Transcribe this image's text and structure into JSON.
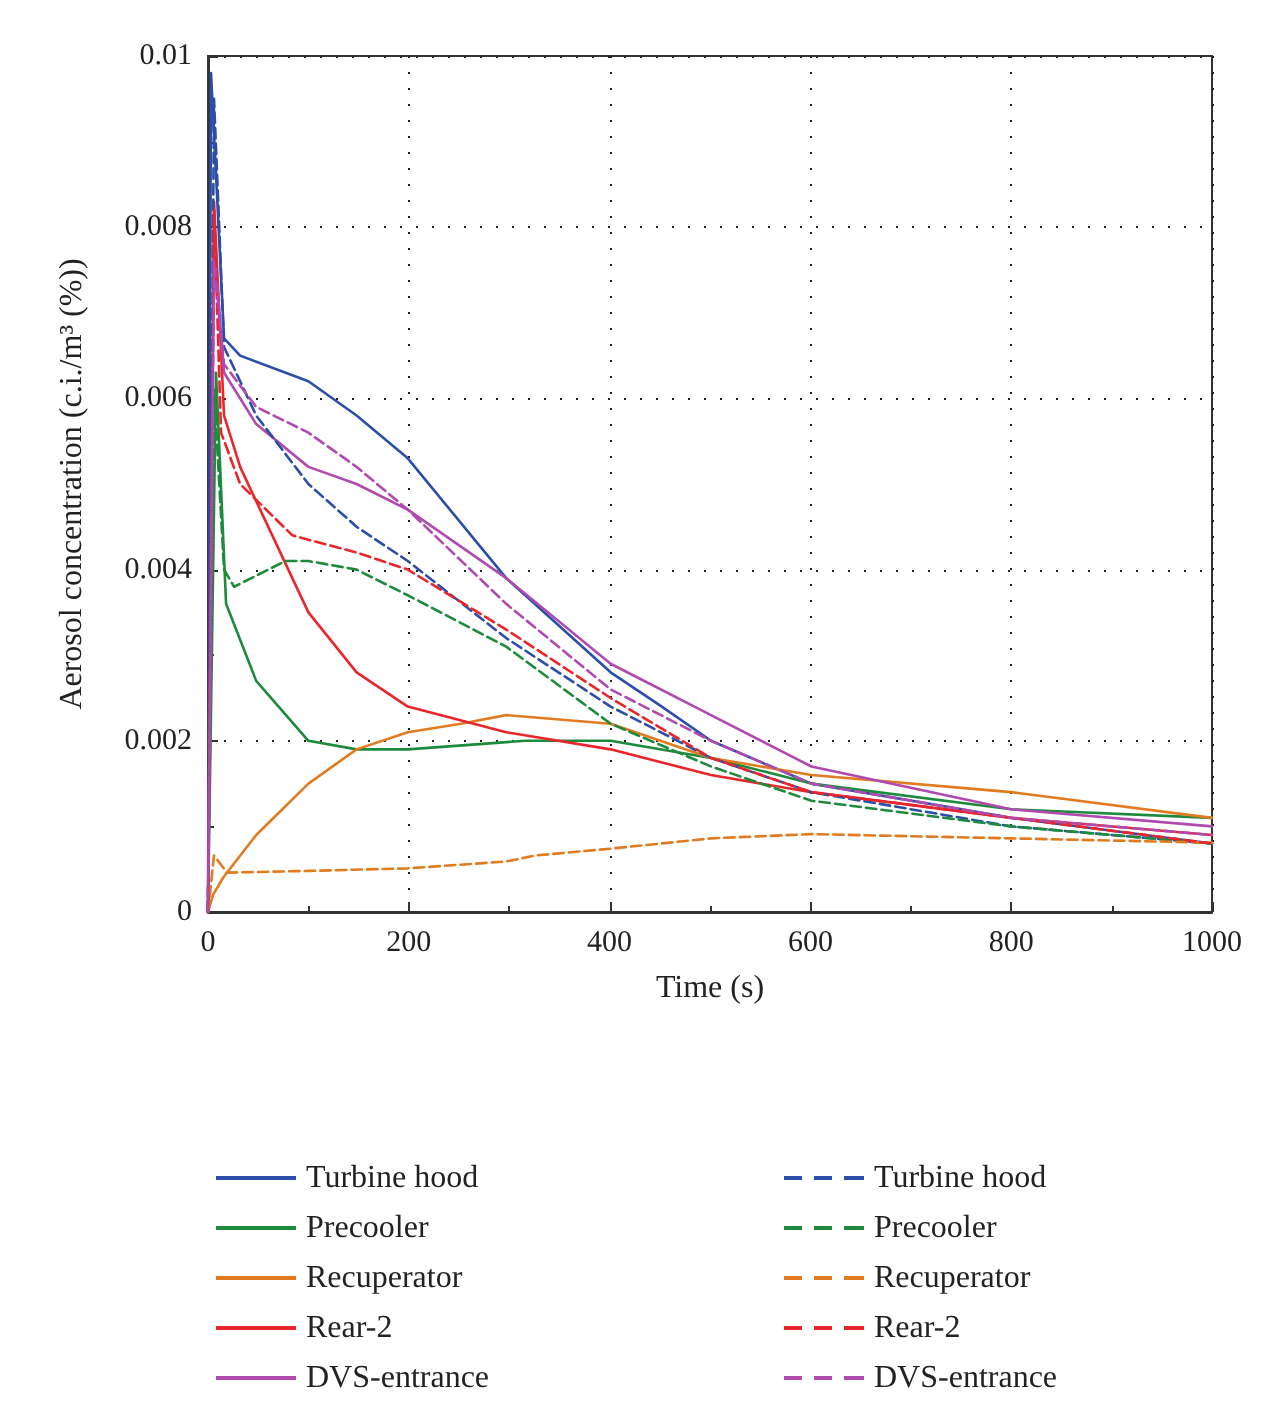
{
  "chart_data": {
    "type": "line",
    "xlabel": "Time (s)",
    "ylabel": "Aerosol concentration (c.i./m³ (%))",
    "xlim": [
      0,
      1000
    ],
    "xticks": [
      0,
      200,
      400,
      600,
      800,
      1000
    ],
    "ylim": [
      0,
      0.01
    ],
    "yticks": [
      0,
      0.002,
      0.004,
      0.006,
      0.008,
      0.01
    ],
    "grid": true,
    "legend": "bottom",
    "marker": "none",
    "series": [
      {
        "name": "Turbine hood",
        "color": "#2b4fa8",
        "line_style": "solid",
        "x": [
          0,
          3,
          16,
          32,
          100,
          148,
          199,
          297,
          401,
          452,
          501,
          601,
          800,
          1000
        ],
        "values": [
          0,
          0.0098,
          0.0067,
          0.0065,
          0.0062,
          0.0058,
          0.0053,
          0.0039,
          0.0028,
          0.0024,
          0.002,
          0.0015,
          0.0011,
          0.0008
        ]
      },
      {
        "name": "Precooler",
        "color": "#1e8a3c",
        "line_style": "solid",
        "x": [
          0,
          8,
          18,
          48,
          100,
          148,
          199,
          316,
          401,
          501,
          601,
          800,
          1000
        ],
        "values": [
          0,
          0.0063,
          0.0036,
          0.0027,
          0.002,
          0.0019,
          0.0019,
          0.002,
          0.002,
          0.0018,
          0.0015,
          0.0012,
          0.0011
        ]
      },
      {
        "name": "Recuperator",
        "color": "#e07b20",
        "line_style": "solid",
        "x": [
          0,
          5,
          15,
          48,
          100,
          148,
          199,
          252,
          297,
          401,
          501,
          601,
          800,
          1000
        ],
        "values": [
          0,
          0.0002,
          0.0004,
          0.0009,
          0.0015,
          0.0019,
          0.0021,
          0.0022,
          0.0023,
          0.0022,
          0.0018,
          0.0016,
          0.0014,
          0.0011
        ]
      },
      {
        "name": "Rear-2",
        "color": "#e8262b",
        "line_style": "solid",
        "x": [
          0,
          6,
          16,
          32,
          100,
          148,
          199,
          297,
          401,
          501,
          601,
          800,
          1000
        ],
        "values": [
          0,
          0.0083,
          0.0058,
          0.0052,
          0.0035,
          0.0028,
          0.0024,
          0.0021,
          0.0019,
          0.0016,
          0.0014,
          0.0011,
          0.0009
        ]
      },
      {
        "name": "DVS-entrance",
        "color": "#b04ab0",
        "line_style": "solid",
        "x": [
          0,
          6,
          16,
          48,
          100,
          148,
          199,
          297,
          401,
          501,
          601,
          800,
          1000
        ],
        "values": [
          0,
          0.0078,
          0.0063,
          0.0057,
          0.0052,
          0.005,
          0.0047,
          0.0039,
          0.0029,
          0.0023,
          0.0017,
          0.0012,
          0.001
        ]
      },
      {
        "name": "Turbine hood",
        "color": "#2b4fa8",
        "line_style": "dashed",
        "x": [
          0,
          6,
          16,
          48,
          100,
          148,
          199,
          297,
          401,
          501,
          601,
          800,
          1000
        ],
        "values": [
          0,
          0.0095,
          0.0066,
          0.0058,
          0.005,
          0.0045,
          0.0041,
          0.0032,
          0.0024,
          0.0018,
          0.0014,
          0.001,
          0.0008
        ]
      },
      {
        "name": "Precooler",
        "color": "#1e8a3c",
        "line_style": "dashed",
        "x": [
          0,
          6,
          16,
          26,
          77,
          100,
          148,
          199,
          297,
          401,
          501,
          601,
          800,
          1000
        ],
        "values": [
          0,
          0.0061,
          0.004,
          0.0038,
          0.0041,
          0.0041,
          0.004,
          0.0037,
          0.0031,
          0.0022,
          0.0017,
          0.0013,
          0.001,
          0.0008
        ]
      },
      {
        "name": "Recuperator",
        "color": "#e07b20",
        "line_style": "dashed",
        "x": [
          0,
          6,
          19,
          100,
          199,
          297,
          326,
          401,
          501,
          601,
          800,
          1000
        ],
        "values": [
          0,
          0.00066,
          0.00046,
          0.00048,
          0.00051,
          0.00059,
          0.00066,
          0.00074,
          0.00086,
          0.00091,
          0.00086,
          0.00081
        ]
      },
      {
        "name": "Rear-2",
        "color": "#e8262b",
        "line_style": "dashed",
        "x": [
          0,
          6,
          13,
          32,
          84,
          148,
          199,
          297,
          401,
          501,
          601,
          800,
          1000
        ],
        "values": [
          0,
          0.0082,
          0.0056,
          0.005,
          0.0044,
          0.0042,
          0.004,
          0.0033,
          0.0025,
          0.0018,
          0.0014,
          0.0011,
          0.0008
        ]
      },
      {
        "name": "DVS-entrance",
        "color": "#b04ab0",
        "line_style": "dashed",
        "x": [
          0,
          6,
          16,
          48,
          100,
          148,
          199,
          297,
          401,
          501,
          601,
          800,
          1000
        ],
        "values": [
          0,
          0.0076,
          0.0064,
          0.0059,
          0.0056,
          0.0052,
          0.0047,
          0.0036,
          0.0026,
          0.002,
          0.0015,
          0.0011,
          0.0009
        ]
      }
    ]
  }
}
